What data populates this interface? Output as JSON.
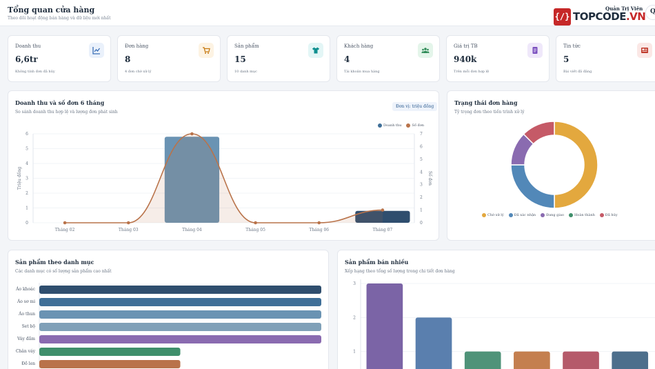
{
  "header": {
    "title": "Tổng quan cửa hàng",
    "subtitle": "Theo dõi hoạt động bán hàng và dữ liệu mới nhất",
    "user_name": "Quản Trị Viên",
    "avatar_initial": "Q",
    "logo_text": "TOPCODE",
    "logo_domain": ".VN"
  },
  "stats": [
    {
      "label": "Doanh thu",
      "value": "6,6tr",
      "note": "Không tính đơn đã hủy",
      "icon": "chart-line-icon",
      "color": "#3b6fb6",
      "bg": "#eaf1fb"
    },
    {
      "label": "Đơn hàng",
      "value": "8",
      "note": "4 đơn chờ xử lý",
      "icon": "cart-icon",
      "color": "#c77a12",
      "bg": "#fdf3e3"
    },
    {
      "label": "Sản phẩm",
      "value": "15",
      "note": "10 danh mục",
      "icon": "shirt-icon",
      "color": "#0e8f8f",
      "bg": "#e3f6f6"
    },
    {
      "label": "Khách hàng",
      "value": "4",
      "note": "Tài khoản mua hàng",
      "icon": "users-icon",
      "color": "#2e8b57",
      "bg": "#e4f5ea"
    },
    {
      "label": "Giá trị TB",
      "value": "940k",
      "note": "Trên mỗi đơn hợp lệ",
      "icon": "receipt-icon",
      "color": "#7b4fbf",
      "bg": "#efe8fa"
    },
    {
      "label": "Tin tức",
      "value": "5",
      "note": "Bài viết đã đăng",
      "icon": "newspaper-icon",
      "color": "#c0392b",
      "bg": "#fbe8e6"
    }
  ],
  "revenue_chart": {
    "title": "Doanh thu và số đơn 6 tháng",
    "subtitle": "So sánh doanh thu hợp lệ và lượng đơn phát sinh",
    "badge": "Đơn vị: triệu đồng",
    "chart_data": {
      "type": "bar",
      "categories": [
        "Tháng 02",
        "Tháng 03",
        "Tháng 04",
        "Tháng 05",
        "Tháng 06",
        "Tháng 07"
      ],
      "series": [
        {
          "name": "Doanh thu",
          "type": "bar",
          "axis": "left",
          "color": "#3f6f98",
          "values": [
            0,
            0,
            5.8,
            0,
            0,
            0.8
          ]
        },
        {
          "name": "Số đơn",
          "type": "line",
          "axis": "right",
          "color": "#b9734a",
          "values": [
            0,
            0,
            7,
            0,
            0,
            1
          ]
        }
      ],
      "ylabel": "Triệu đồng",
      "y2label": "Số đơn",
      "ylim": [
        0,
        6
      ],
      "y2lim": [
        0,
        7
      ],
      "yticks": [
        0,
        1,
        2,
        3,
        4,
        5,
        6
      ],
      "y2ticks": [
        0,
        1,
        2,
        3,
        4,
        5,
        6,
        7
      ],
      "legend": "top-right",
      "grid": true
    }
  },
  "status_chart": {
    "title": "Trạng thái đơn hàng",
    "subtitle": "Tỷ trọng đơn theo tiến trình xử lý",
    "chart_data": {
      "type": "pie",
      "categories": [
        "Chờ xử lý",
        "Đã xác nhận",
        "Đang giao",
        "Hoàn thành",
        "Đã hủy"
      ],
      "values": [
        4,
        2,
        1,
        0,
        1
      ],
      "colors": [
        "#e3a83e",
        "#5288b8",
        "#8a6bb0",
        "#3f8f6b",
        "#c55a67"
      ],
      "legend": "bottom"
    }
  },
  "category_chart": {
    "title": "Sản phẩm theo danh mục",
    "subtitle": "Các danh mục có số lượng sản phẩm cao nhất",
    "chart_data": {
      "type": "bar",
      "orientation": "horizontal",
      "categories": [
        "Áo khoác",
        "Áo sơ mi",
        "Áo thun",
        "Set bộ",
        "Váy đầm",
        "Chân váy",
        "Đồ len"
      ],
      "values": [
        2,
        2,
        2,
        2,
        2,
        1,
        1
      ],
      "colors": [
        "#2f4e6e",
        "#3f6f98",
        "#6a93b3",
        "#7fa0b8",
        "#8a6bb0",
        "#3f8f6b",
        "#b9734a"
      ]
    }
  },
  "best_seller_chart": {
    "title": "Sản phẩm bán nhiều",
    "subtitle": "Xếp hạng theo tổng số lượng trong chi tiết đơn hàng",
    "chart_data": {
      "type": "bar",
      "categories": [
        "",
        "",
        "",
        "",
        "",
        ""
      ],
      "values": [
        3,
        2,
        1,
        1,
        1,
        1
      ],
      "colors": [
        "#7b64a6",
        "#5a7fae",
        "#4f9379",
        "#c47f4f",
        "#b55a6a",
        "#4d6f8c"
      ],
      "yticks": [
        1,
        2,
        3
      ],
      "ylim": [
        0,
        3
      ]
    }
  }
}
